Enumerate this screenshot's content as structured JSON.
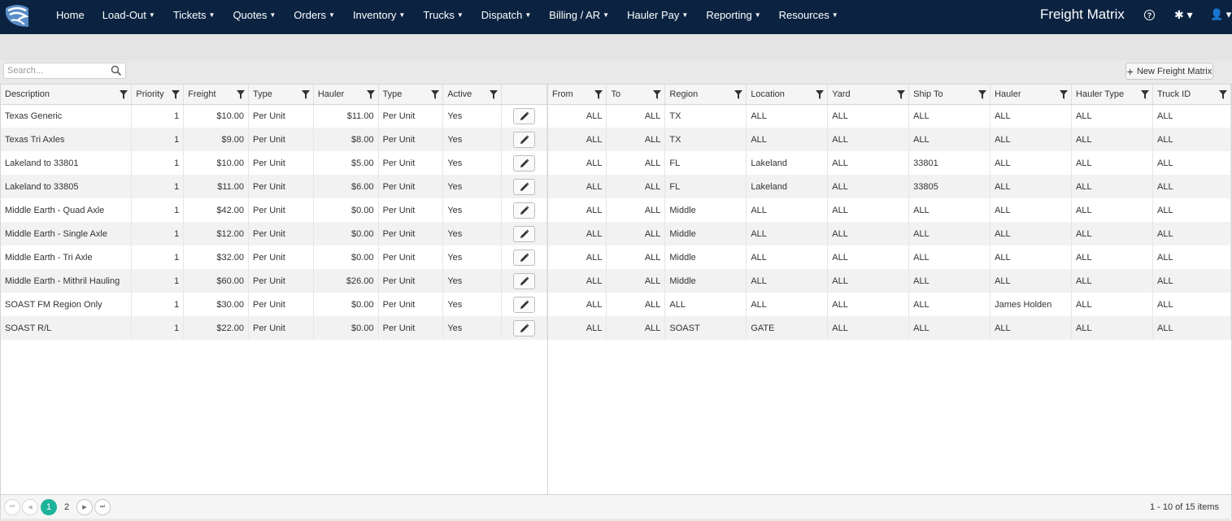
{
  "nav": {
    "items": [
      {
        "label": "Home",
        "caret": false
      },
      {
        "label": "Load-Out",
        "caret": true
      },
      {
        "label": "Tickets",
        "caret": true
      },
      {
        "label": "Quotes",
        "caret": true
      },
      {
        "label": "Orders",
        "caret": true
      },
      {
        "label": "Inventory",
        "caret": true
      },
      {
        "label": "Trucks",
        "caret": true
      },
      {
        "label": "Dispatch",
        "caret": true
      },
      {
        "label": "Billing / AR",
        "caret": true
      },
      {
        "label": "Hauler Pay",
        "caret": true
      },
      {
        "label": "Reporting",
        "caret": true
      },
      {
        "label": "Resources",
        "caret": true
      }
    ],
    "app_title": "Freight Matrix",
    "help_glyph": "?",
    "gear_glyph": "✱ ▾",
    "user_glyph": "👤 ▾"
  },
  "toolbar": {
    "search_placeholder": "Search...",
    "new_button_label": "New Freight Matrix",
    "new_button_icon": "+"
  },
  "grid": {
    "left_columns": [
      "Description",
      "Priority",
      "Freight",
      "Type",
      "Hauler",
      "Type",
      "Active",
      ""
    ],
    "right_columns": [
      "From",
      "To",
      "Region",
      "Location",
      "Yard",
      "Ship To",
      "Hauler",
      "Hauler Type",
      "Truck ID"
    ],
    "rows": [
      {
        "description": "Texas Generic",
        "priority": "1",
        "freight": "$10.00",
        "type": "Per Unit",
        "hauler": "$11.00",
        "hauler_type": "Per Unit",
        "active": "Yes",
        "from": "ALL",
        "to": "ALL",
        "region": "TX",
        "location": "ALL",
        "yard": "ALL",
        "ship_to": "ALL",
        "hauler_name": "ALL",
        "hauler_type2": "ALL",
        "truck_id": "ALL"
      },
      {
        "description": "Texas Tri Axles",
        "priority": "1",
        "freight": "$9.00",
        "type": "Per Unit",
        "hauler": "$8.00",
        "hauler_type": "Per Unit",
        "active": "Yes",
        "from": "ALL",
        "to": "ALL",
        "region": "TX",
        "location": "ALL",
        "yard": "ALL",
        "ship_to": "ALL",
        "hauler_name": "ALL",
        "hauler_type2": "ALL",
        "truck_id": "ALL"
      },
      {
        "description": "Lakeland to 33801",
        "priority": "1",
        "freight": "$10.00",
        "type": "Per Unit",
        "hauler": "$5.00",
        "hauler_type": "Per Unit",
        "active": "Yes",
        "from": "ALL",
        "to": "ALL",
        "region": "FL",
        "location": "Lakeland",
        "yard": "ALL",
        "ship_to": "33801",
        "hauler_name": "ALL",
        "hauler_type2": "ALL",
        "truck_id": "ALL"
      },
      {
        "description": "Lakeland to 33805",
        "priority": "1",
        "freight": "$11.00",
        "type": "Per Unit",
        "hauler": "$6.00",
        "hauler_type": "Per Unit",
        "active": "Yes",
        "from": "ALL",
        "to": "ALL",
        "region": "FL",
        "location": "Lakeland",
        "yard": "ALL",
        "ship_to": "33805",
        "hauler_name": "ALL",
        "hauler_type2": "ALL",
        "truck_id": "ALL"
      },
      {
        "description": "Middle Earth - Quad Axle",
        "priority": "1",
        "freight": "$42.00",
        "type": "Per Unit",
        "hauler": "$0.00",
        "hauler_type": "Per Unit",
        "active": "Yes",
        "from": "ALL",
        "to": "ALL",
        "region": "Middle",
        "location": "ALL",
        "yard": "ALL",
        "ship_to": "ALL",
        "hauler_name": "ALL",
        "hauler_type2": "ALL",
        "truck_id": "ALL"
      },
      {
        "description": "Middle Earth - Single Axle",
        "priority": "1",
        "freight": "$12.00",
        "type": "Per Unit",
        "hauler": "$0.00",
        "hauler_type": "Per Unit",
        "active": "Yes",
        "from": "ALL",
        "to": "ALL",
        "region": "Middle",
        "location": "ALL",
        "yard": "ALL",
        "ship_to": "ALL",
        "hauler_name": "ALL",
        "hauler_type2": "ALL",
        "truck_id": "ALL"
      },
      {
        "description": "Middle Earth - Tri Axle",
        "priority": "1",
        "freight": "$32.00",
        "type": "Per Unit",
        "hauler": "$0.00",
        "hauler_type": "Per Unit",
        "active": "Yes",
        "from": "ALL",
        "to": "ALL",
        "region": "Middle",
        "location": "ALL",
        "yard": "ALL",
        "ship_to": "ALL",
        "hauler_name": "ALL",
        "hauler_type2": "ALL",
        "truck_id": "ALL"
      },
      {
        "description": "Middle Earth - Mithril Hauling",
        "priority": "1",
        "freight": "$60.00",
        "type": "Per Unit",
        "hauler": "$26.00",
        "hauler_type": "Per Unit",
        "active": "Yes",
        "from": "ALL",
        "to": "ALL",
        "region": "Middle",
        "location": "ALL",
        "yard": "ALL",
        "ship_to": "ALL",
        "hauler_name": "ALL",
        "hauler_type2": "ALL",
        "truck_id": "ALL"
      },
      {
        "description": "SOAST FM Region Only",
        "priority": "1",
        "freight": "$30.00",
        "type": "Per Unit",
        "hauler": "$0.00",
        "hauler_type": "Per Unit",
        "active": "Yes",
        "from": "ALL",
        "to": "ALL",
        "region": "ALL",
        "location": "ALL",
        "yard": "ALL",
        "ship_to": "ALL",
        "hauler_name": "James Holden",
        "hauler_type2": "ALL",
        "truck_id": "ALL"
      },
      {
        "description": "SOAST R/L",
        "priority": "1",
        "freight": "$22.00",
        "type": "Per Unit",
        "hauler": "$0.00",
        "hauler_type": "Per Unit",
        "active": "Yes",
        "from": "ALL",
        "to": "ALL",
        "region": "SOAST",
        "location": "GATE",
        "yard": "ALL",
        "ship_to": "ALL",
        "hauler_name": "ALL",
        "hauler_type2": "ALL",
        "truck_id": "ALL"
      }
    ]
  },
  "pager": {
    "pages": [
      "1",
      "2"
    ],
    "current_page": "1",
    "info": "1 - 10 of 15 items",
    "first_glyph": "⏮",
    "prev_glyph": "◀",
    "next_glyph": "▶",
    "last_glyph": "⏭"
  },
  "colors": {
    "navbar": "#0b2341",
    "current_page": "#1db39a"
  }
}
